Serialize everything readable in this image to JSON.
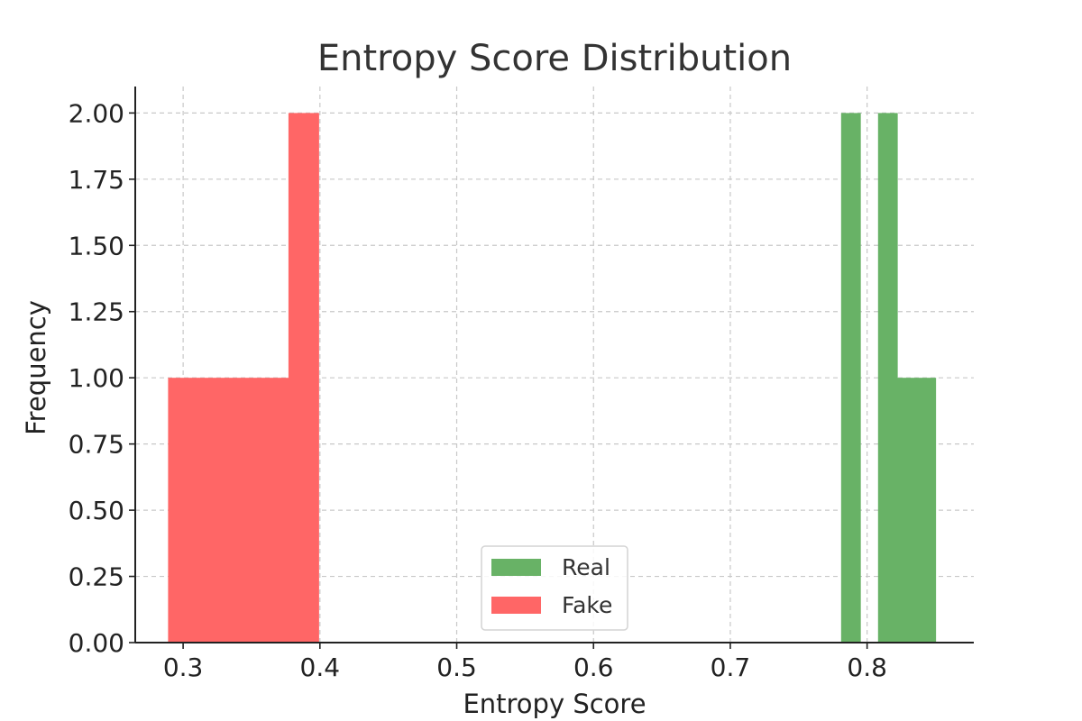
{
  "chart_data": {
    "type": "bar",
    "subtype": "histogram",
    "title": "Entropy Score Distribution",
    "xlabel": "Entropy Score",
    "ylabel": "Frequency",
    "xlim": [
      0.265,
      0.878
    ],
    "ylim": [
      0,
      2.1
    ],
    "x_ticks": [
      0.3,
      0.4,
      0.5,
      0.6,
      0.7,
      0.8
    ],
    "x_tick_labels": [
      "0.3",
      "0.4",
      "0.5",
      "0.6",
      "0.7",
      "0.8"
    ],
    "y_ticks": [
      0,
      0.25,
      0.5,
      0.75,
      1.0,
      1.25,
      1.5,
      1.75,
      2.0
    ],
    "y_tick_labels": [
      "0.00",
      "0.25",
      "0.50",
      "0.75",
      "1.00",
      "1.25",
      "1.50",
      "1.75",
      "2.00"
    ],
    "grid": true,
    "legend_position": "bottom-center",
    "series": [
      {
        "name": "Real",
        "color": "#68b266",
        "bins": [
          {
            "x0": 0.781,
            "x1": 0.795,
            "count": 2
          },
          {
            "x0": 0.808,
            "x1": 0.822,
            "count": 2
          },
          {
            "x0": 0.822,
            "x1": 0.836,
            "count": 1
          },
          {
            "x0": 0.836,
            "x1": 0.85,
            "count": 1
          }
        ]
      },
      {
        "name": "Fake",
        "color": "#ff6666",
        "bins": [
          {
            "x0": 0.289,
            "x1": 0.311,
            "count": 1
          },
          {
            "x0": 0.311,
            "x1": 0.333,
            "count": 1
          },
          {
            "x0": 0.333,
            "x1": 0.355,
            "count": 1
          },
          {
            "x0": 0.355,
            "x1": 0.377,
            "count": 1
          },
          {
            "x0": 0.377,
            "x1": 0.399,
            "count": 2
          }
        ]
      }
    ]
  }
}
